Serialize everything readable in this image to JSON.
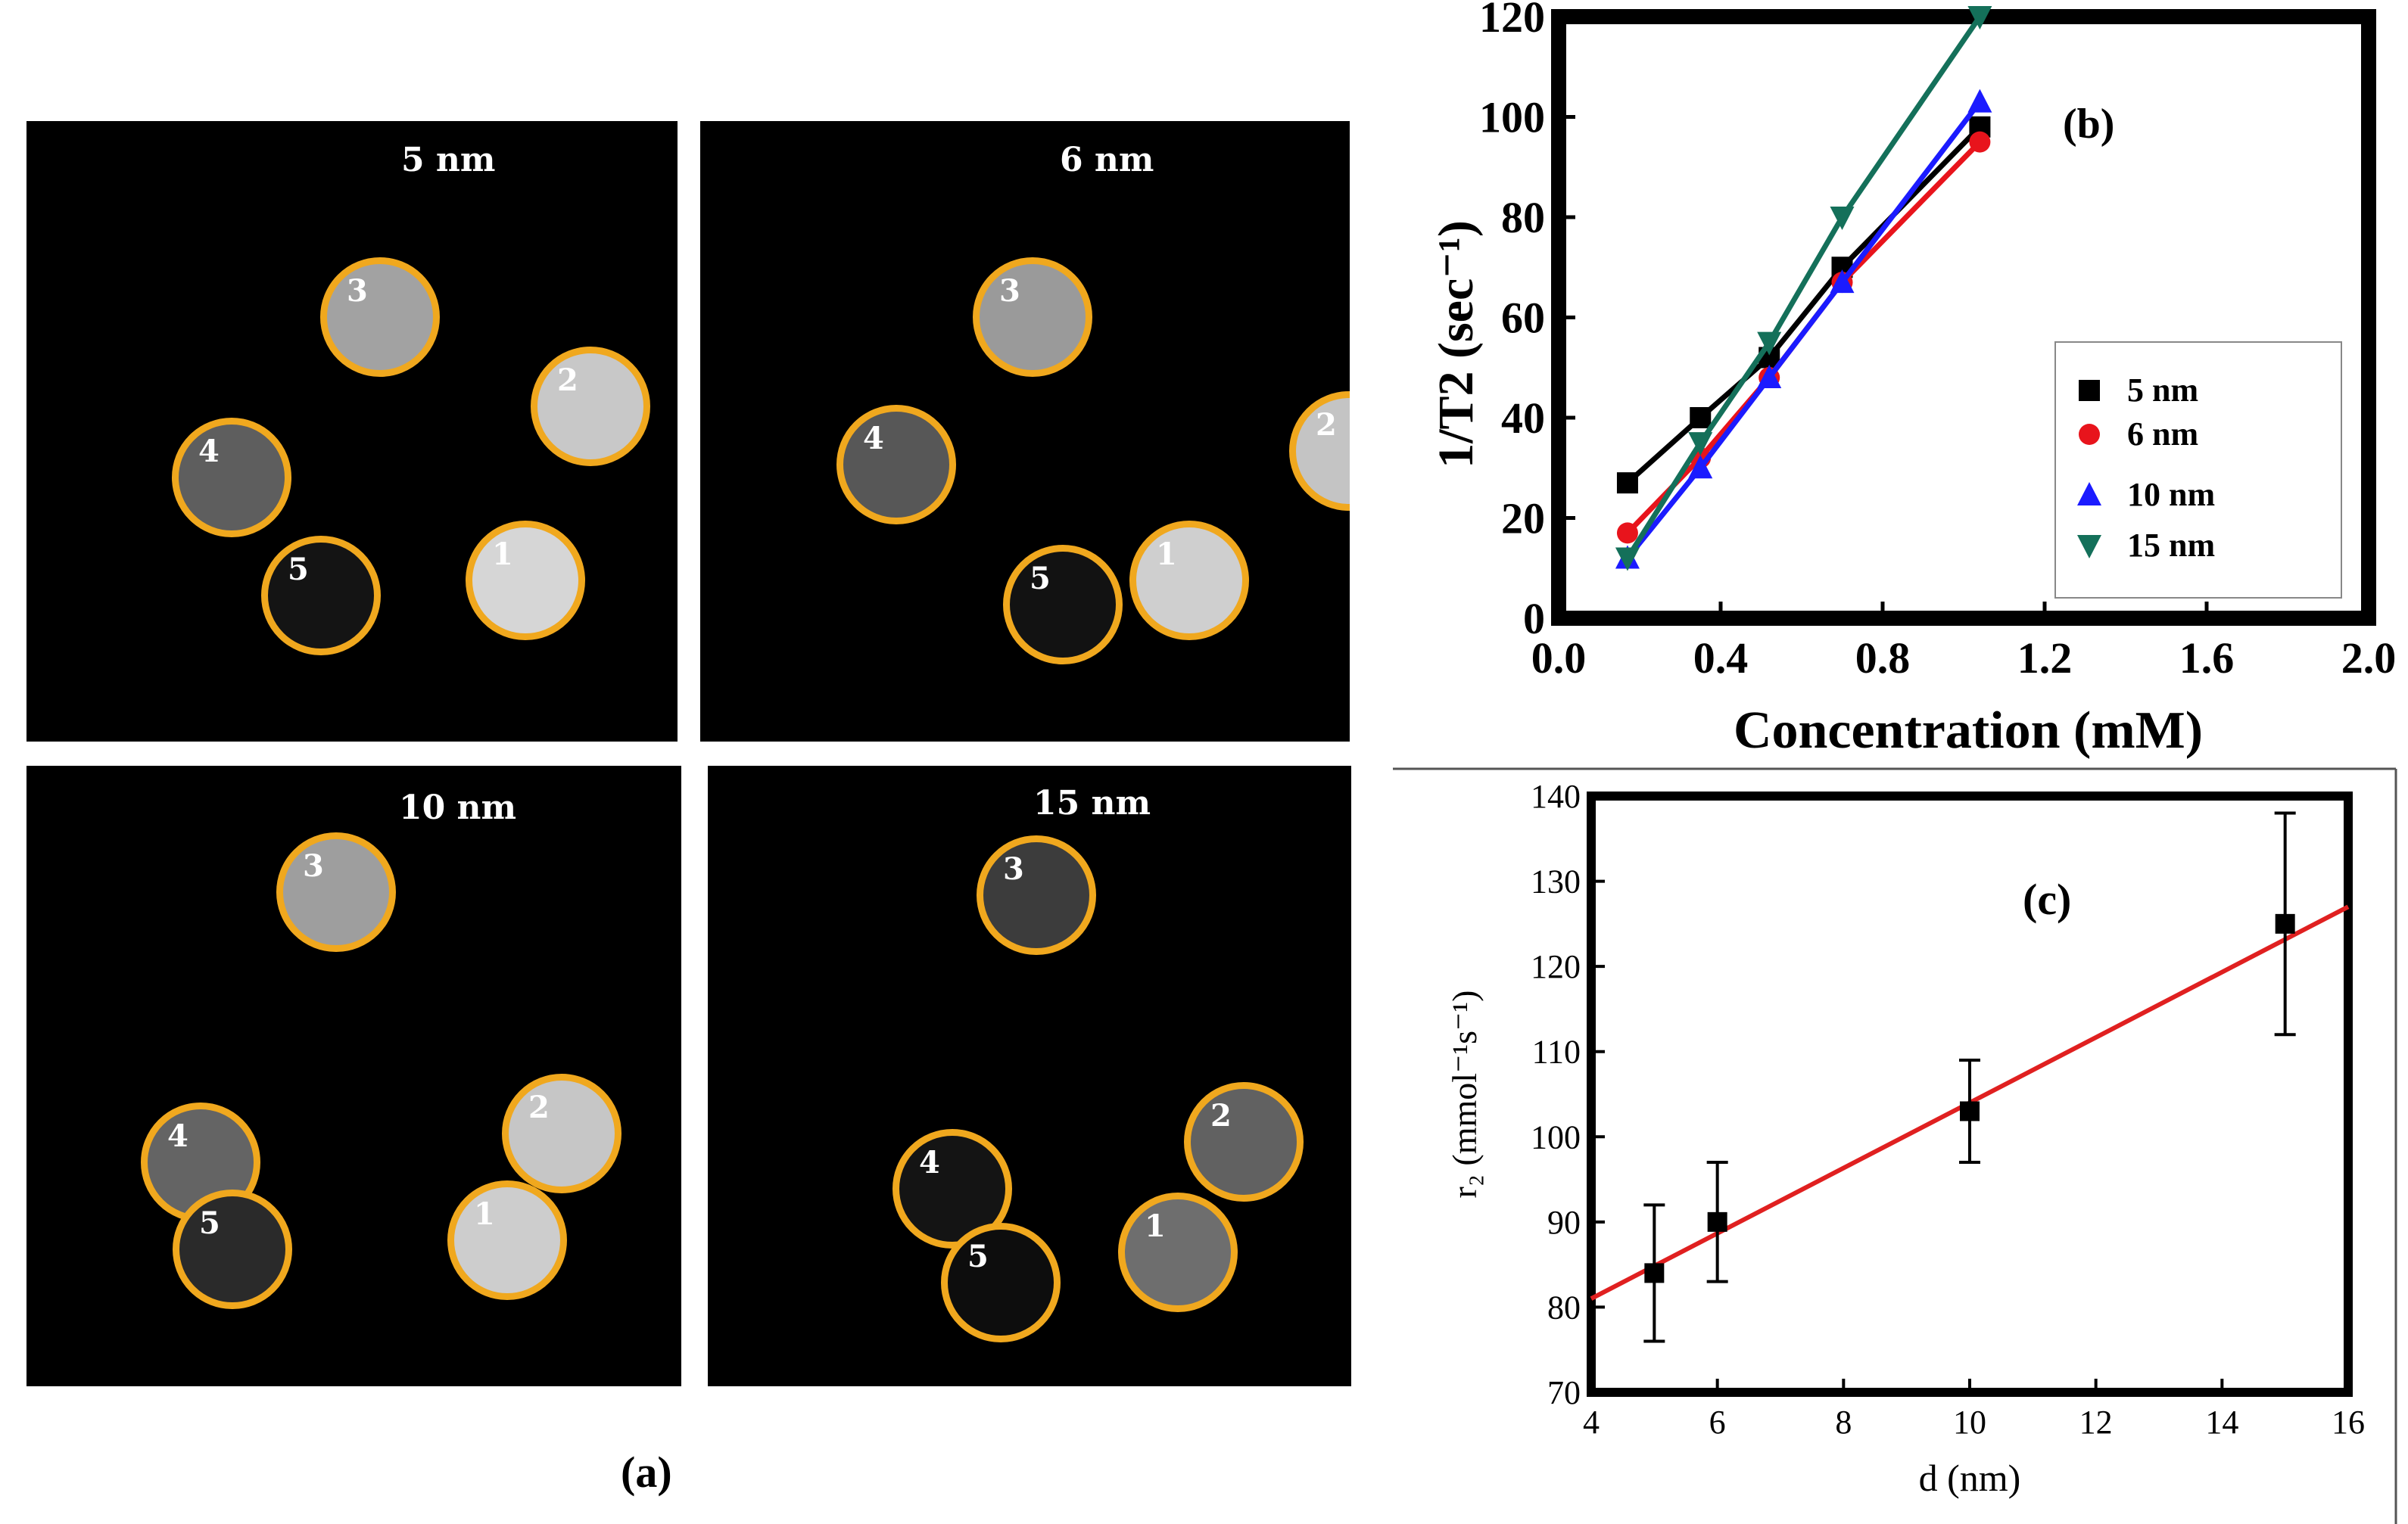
{
  "panels": [
    {
      "title": "5 nm",
      "tubes": [
        {
          "label": "1",
          "intensity": "#d6d6d6"
        },
        {
          "label": "2",
          "intensity": "#c8c8c8"
        },
        {
          "label": "3",
          "intensity": "#a2a2a2"
        },
        {
          "label": "4",
          "intensity": "#5e5e5e"
        },
        {
          "label": "5",
          "intensity": "#141414"
        }
      ]
    },
    {
      "title": "6 nm",
      "tubes": [
        {
          "label": "1",
          "intensity": "#cfcfcf"
        },
        {
          "label": "2",
          "intensity": "#c4c4c4"
        },
        {
          "label": "3",
          "intensity": "#9a9a9a"
        },
        {
          "label": "4",
          "intensity": "#575757"
        },
        {
          "label": "5",
          "intensity": "#121212"
        }
      ]
    },
    {
      "title": "10 nm",
      "tubes": [
        {
          "label": "1",
          "intensity": "#cdcdcd"
        },
        {
          "label": "2",
          "intensity": "#c6c6c6"
        },
        {
          "label": "3",
          "intensity": "#9e9e9e"
        },
        {
          "label": "4",
          "intensity": "#646464"
        },
        {
          "label": "5",
          "intensity": "#2a2a2a"
        }
      ]
    },
    {
      "title": "15 nm",
      "tubes": [
        {
          "label": "1",
          "intensity": "#6e6e6e"
        },
        {
          "label": "2",
          "intensity": "#616161"
        },
        {
          "label": "3",
          "intensity": "#3c3c3c"
        },
        {
          "label": "4",
          "intensity": "#141414"
        },
        {
          "label": "5",
          "intensity": "#0d0d0d"
        }
      ]
    }
  ],
  "captions": {
    "a": "(a)",
    "b": "(b)",
    "c": "(c)"
  },
  "chart_data": [
    {
      "type": "line",
      "id": "b",
      "xlabel": "Concentration (mM)",
      "ylabel": "1/T2 (sec⁻¹)",
      "xlim": [
        0,
        2.0
      ],
      "ylim": [
        0,
        120
      ],
      "xticks": [
        "0.0",
        "0.4",
        "0.8",
        "1.2",
        "1.6",
        "2.0"
      ],
      "yticks": [
        "0",
        "20",
        "40",
        "60",
        "80",
        "100",
        "120"
      ],
      "series": [
        {
          "name": "5 nm",
          "color": "#000000",
          "marker": "square",
          "x": [
            0.17,
            0.35,
            0.52,
            0.7,
            1.04
          ],
          "y": [
            27,
            40,
            52,
            70,
            98
          ]
        },
        {
          "name": "6 nm",
          "color": "#e8141c",
          "marker": "circle",
          "x": [
            0.17,
            0.35,
            0.52,
            0.7,
            1.04
          ],
          "y": [
            17,
            32,
            48,
            67,
            95
          ]
        },
        {
          "name": "10 nm",
          "color": "#1b1bff",
          "marker": "triangle",
          "x": [
            0.17,
            0.35,
            0.52,
            0.7,
            1.04
          ],
          "y": [
            12,
            30,
            48,
            67,
            103
          ]
        },
        {
          "name": "15 nm",
          "color": "#14705a",
          "marker": "triangle-down",
          "x": [
            0.17,
            0.35,
            0.52,
            0.7,
            1.04
          ],
          "y": [
            12,
            35,
            55,
            80,
            120
          ]
        }
      ]
    },
    {
      "type": "scatter",
      "id": "c",
      "xlabel": "d (nm)",
      "ylabel": "r₂ (mmol⁻¹s⁻¹)",
      "xlim": [
        4,
        16
      ],
      "ylim": [
        70,
        140
      ],
      "xticks": [
        "4",
        "6",
        "8",
        "10",
        "12",
        "14",
        "16"
      ],
      "yticks": [
        "70",
        "80",
        "90",
        "100",
        "110",
        "120",
        "130",
        "140"
      ],
      "points": {
        "x": [
          5,
          6,
          10,
          15
        ],
        "y": [
          84,
          90,
          103,
          125
        ],
        "err": [
          8,
          7,
          6,
          13
        ]
      },
      "fit": {
        "color": "#e02020",
        "x": [
          4,
          16
        ],
        "y": [
          81,
          127
        ]
      }
    }
  ]
}
